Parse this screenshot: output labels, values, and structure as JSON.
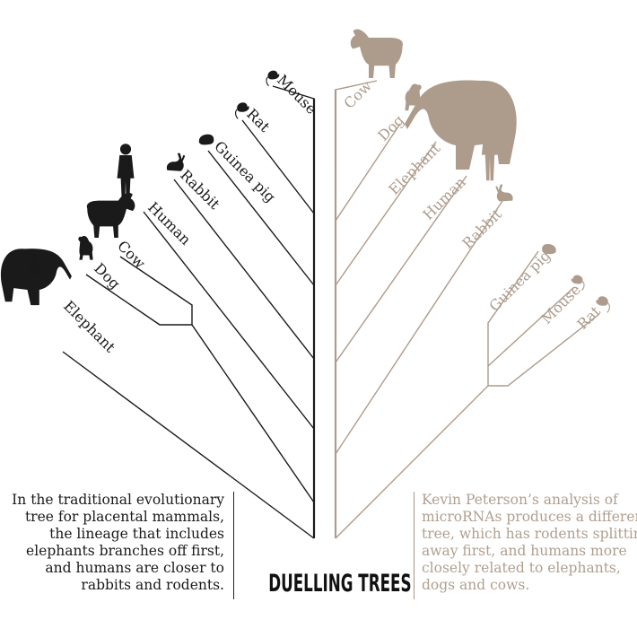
{
  "title": "DUELLING TREES",
  "captions": {
    "left": "In the traditional evolutionary tree for placental mammals, the lineage that includes elephants branches off first, and humans are closer to rabbits and rodents.",
    "right_lines": [
      "Kevin Peterson’s analysis of",
      "microRNAs produces a different",
      "tree, which has rodents splitting",
      "away first, and humans more",
      "closely related to elephants,",
      "dogs and cows."
    ]
  },
  "colors": {
    "traditional": "#1a1a1a",
    "microrna": "#ad9b8c"
  },
  "traditional_tree": {
    "leaves": [
      {
        "name": "Elephant",
        "icon": "elephant-icon"
      },
      {
        "name": "Dog",
        "icon": "dog-icon"
      },
      {
        "name": "Cow",
        "icon": "cow-icon"
      },
      {
        "name": "Human",
        "icon": "human-icon"
      },
      {
        "name": "Rabbit",
        "icon": "rabbit-icon"
      },
      {
        "name": "Guinea pig",
        "icon": "guinea-pig-icon"
      },
      {
        "name": "Rat",
        "icon": "rat-icon"
      },
      {
        "name": "Mouse",
        "icon": "mouse-icon"
      }
    ]
  },
  "microrna_tree": {
    "leaves": [
      {
        "name": "Cow",
        "icon": "cow-icon"
      },
      {
        "name": "Dog",
        "icon": "dog-icon"
      },
      {
        "name": "Elephant",
        "icon": "elephant-icon"
      },
      {
        "name": "Human",
        "icon": "human-icon"
      },
      {
        "name": "Rabbit",
        "icon": "rabbit-icon"
      },
      {
        "name": "Guinea pig",
        "icon": "guinea-pig-icon"
      },
      {
        "name": "Mouse",
        "icon": "mouse-icon"
      },
      {
        "name": "Rat",
        "icon": "rat-icon"
      }
    ]
  }
}
